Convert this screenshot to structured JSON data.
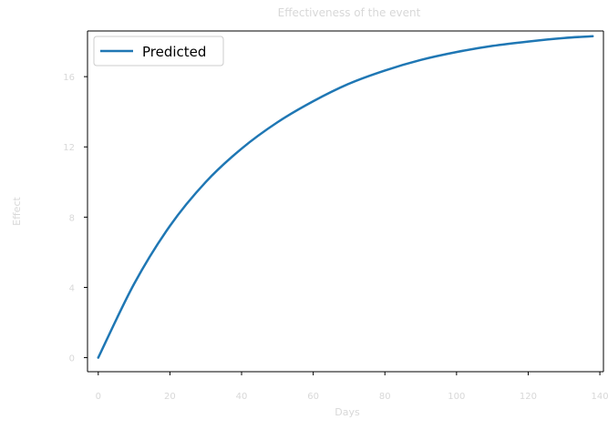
{
  "chart_data": {
    "type": "line",
    "title": "Effectiveness of the event",
    "xlabel": "Days",
    "ylabel": "Effect",
    "xlim": [
      -3,
      141
    ],
    "ylim": [
      -0.8,
      18.6
    ],
    "xticks": [
      0,
      20,
      40,
      60,
      80,
      100,
      120,
      140
    ],
    "yticks": [
      0,
      4,
      8,
      12,
      16
    ],
    "grid": false,
    "legend_position": "top-left",
    "series": [
      {
        "name": "Predicted",
        "color": "#1f77b4",
        "x": [
          0,
          10,
          20,
          30,
          40,
          50,
          60,
          70,
          80,
          90,
          100,
          110,
          120,
          130,
          138
        ],
        "y": [
          0,
          4.2,
          7.5,
          10.0,
          11.9,
          13.4,
          14.6,
          15.6,
          16.35,
          16.95,
          17.4,
          17.75,
          18.0,
          18.2,
          18.3
        ]
      }
    ]
  }
}
